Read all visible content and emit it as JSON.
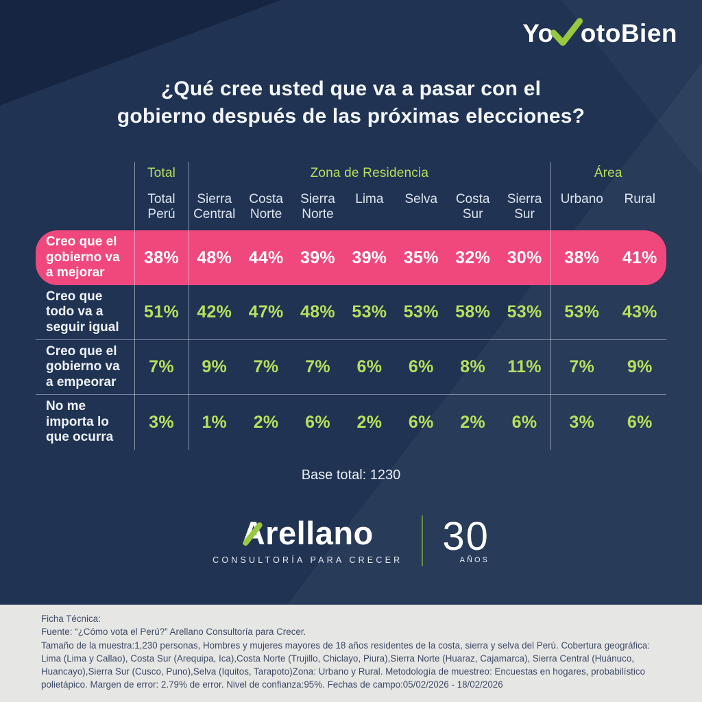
{
  "logo": {
    "part1": "Yo",
    "part2": "otoBien",
    "check_icon": "checkmark"
  },
  "title": "¿Qué cree usted que va a pasar con el\ngobierno después de las próximas elecciones?",
  "chart_data": {
    "type": "table",
    "title": "¿Qué cree usted que va a pasar con el gobierno después de las próximas elecciones?",
    "group_headers": [
      {
        "label": "Total",
        "span": 1
      },
      {
        "label": "Zona de Residencia",
        "span": 7
      },
      {
        "label": "Área",
        "span": 2
      }
    ],
    "columns": [
      "Total Perú",
      "Sierra Central",
      "Costa Norte",
      "Sierra Norte",
      "Lima",
      "Selva",
      "Costa Sur",
      "Sierra Sur",
      "Urbano",
      "Rural"
    ],
    "rows": [
      {
        "label": "Creo que el gobierno va a mejorar",
        "highlighted": true,
        "values": [
          "38%",
          "48%",
          "44%",
          "39%",
          "39%",
          "35%",
          "32%",
          "30%",
          "38%",
          "41%"
        ]
      },
      {
        "label": "Creo que todo va a seguir igual",
        "highlighted": false,
        "values": [
          "51%",
          "42%",
          "47%",
          "48%",
          "53%",
          "53%",
          "58%",
          "53%",
          "53%",
          "43%"
        ]
      },
      {
        "label": "Creo que el gobierno va a empeorar",
        "highlighted": false,
        "values": [
          "7%",
          "9%",
          "7%",
          "7%",
          "6%",
          "6%",
          "8%",
          "11%",
          "7%",
          "9%"
        ]
      },
      {
        "label": "No me importa lo que ocurra",
        "highlighted": false,
        "values": [
          "3%",
          "1%",
          "2%",
          "6%",
          "2%",
          "6%",
          "2%",
          "6%",
          "3%",
          "6%"
        ]
      }
    ],
    "base_note": "Base total: 1230"
  },
  "base_total": "Base total: 1230",
  "brand": {
    "name": "Arellano",
    "tagline": "CONSULTORÍA PARA CRECER",
    "anniversary_number": "30",
    "anniversary_unit": "AÑOS"
  },
  "colors": {
    "background": "#203353",
    "highlight_pink": "#f0477d",
    "accent_green": "#b5e05e",
    "logo_green": "#97c83f",
    "footer_background": "#e6e6e4"
  },
  "footer": {
    "text": "Ficha Técnica:\nFuente: “¿Cómo vota el Perú?” Arellano Consultoría para Crecer.\nTamaño de la muestra:1,230 personas, Hombres y mujeres mayores de 18 años residentes de la costa, sierra y selva del Perú. Cobertura geográfica:\nLima (Lima y Callao), Costa Sur (Arequipa, Ica),Costa Norte (Trujillo, Chiclayo, Piura),Sierra Norte (Huaraz, Cajamarca), Sierra Central (Huánuco,\nHuancayo),Sierra Sur (Cusco, Puno),Selva (Iquitos, Tarapoto)Zona: Urbano y Rural. Metodología de muestreo: Encuestas en hogares, probabilístico\npolietápico. Margen de error: 2.79% de error. Nivel de confianza:95%. Fechas de campo:05/02/2026 - 18/02/2026"
  }
}
